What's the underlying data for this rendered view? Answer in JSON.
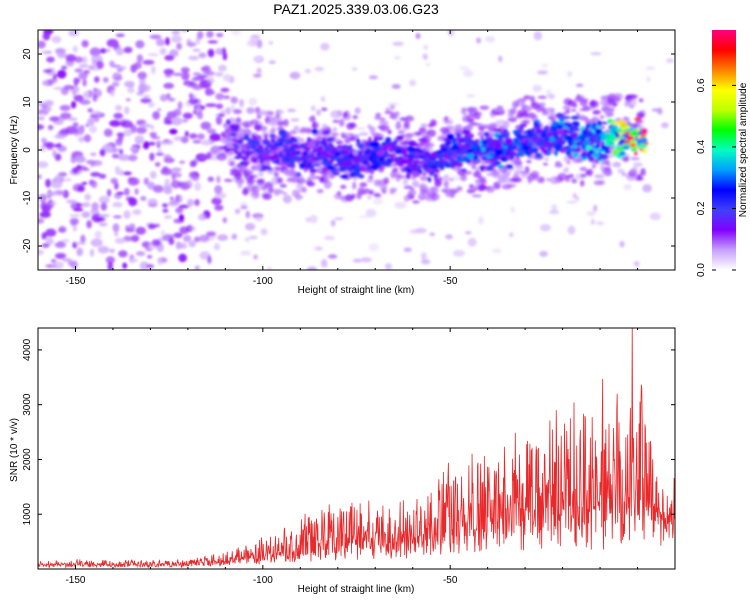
{
  "title": "PAZ1.2025.339.03.06.G23",
  "chart_data": [
    {
      "type": "heatmap",
      "panel": "top",
      "xlabel": "Height of straight line (km)",
      "ylabel": "Frequency (Hz)",
      "xlim": [
        -160,
        10
      ],
      "ylim": [
        -25,
        25
      ],
      "xticks": [
        -150,
        -100,
        -50
      ],
      "xtick_labels": [
        "-150",
        "-100",
        "-50"
      ],
      "yticks": [
        -20,
        -10,
        0,
        10,
        20
      ],
      "ytick_labels": [
        "-20",
        "-10",
        "0",
        "10",
        "20"
      ],
      "colorbar": {
        "label": "Normalized spectral amplitude",
        "range": [
          0.0,
          0.78
        ],
        "ticks": [
          0.0,
          0.2,
          0.4,
          0.6
        ],
        "tick_labels": [
          "0.0",
          "0.2",
          "0.4",
          "0.6"
        ],
        "colors": [
          "#ffffff",
          "#c8a0ff",
          "#8000ff",
          "#4040ff",
          "#0000ff",
          "#00a0ff",
          "#00ffc0",
          "#00ff00",
          "#c0ff00",
          "#ffff00",
          "#ff8000",
          "#ff0000",
          "#ff0080"
        ]
      },
      "signal_trace": [
        {
          "x": -110,
          "y": 3,
          "amp": 0.15
        },
        {
          "x": -105,
          "y": 0,
          "amp": 0.22
        },
        {
          "x": -100,
          "y": -1,
          "amp": 0.2
        },
        {
          "x": -95,
          "y": 0,
          "amp": 0.22
        },
        {
          "x": -90,
          "y": -1,
          "amp": 0.25
        },
        {
          "x": -85,
          "y": 0,
          "amp": 0.22
        },
        {
          "x": -80,
          "y": -1,
          "amp": 0.25
        },
        {
          "x": -75,
          "y": -2,
          "amp": 0.22
        },
        {
          "x": -70,
          "y": -1,
          "amp": 0.25
        },
        {
          "x": -65,
          "y": 0,
          "amp": 0.22
        },
        {
          "x": -60,
          "y": -2,
          "amp": 0.24
        },
        {
          "x": -55,
          "y": -3,
          "amp": 0.25
        },
        {
          "x": -50,
          "y": -1,
          "amp": 0.28
        },
        {
          "x": -45,
          "y": 0,
          "amp": 0.3
        },
        {
          "x": -40,
          "y": 0,
          "amp": 0.32
        },
        {
          "x": -35,
          "y": 0,
          "amp": 0.3
        },
        {
          "x": -30,
          "y": 2,
          "amp": 0.28
        },
        {
          "x": -25,
          "y": 2,
          "amp": 0.3
        },
        {
          "x": -20,
          "y": 3,
          "amp": 0.32
        },
        {
          "x": -15,
          "y": 2,
          "amp": 0.35
        },
        {
          "x": -10,
          "y": 2,
          "amp": 0.38
        },
        {
          "x": -5,
          "y": 3,
          "amp": 0.55
        },
        {
          "x": 0,
          "y": 2,
          "amp": 0.78
        }
      ]
    },
    {
      "type": "line",
      "panel": "bottom",
      "xlabel": "Height of straight line (km)",
      "ylabel": "SNR (10 * v/v)",
      "xlim": [
        -160,
        10
      ],
      "ylim": [
        0,
        4400
      ],
      "xticks": [
        -150,
        -100,
        -50
      ],
      "xtick_labels": [
        "-150",
        "-100",
        "-50"
      ],
      "yticks": [
        1000,
        2000,
        3000,
        4000
      ],
      "ytick_labels": [
        "1000",
        "2000",
        "3000",
        "4000"
      ],
      "line_color": "#e8282a",
      "envelope": {
        "x": [
          -160,
          -150,
          -140,
          -130,
          -120,
          -110,
          -105,
          -100,
          -95,
          -90,
          -85,
          -80,
          -75,
          -70,
          -65,
          -60,
          -55,
          -50,
          -45,
          -40,
          -35,
          -30,
          -25,
          -20,
          -15,
          -10,
          -5,
          0,
          5,
          10
        ],
        "base": [
          80,
          90,
          80,
          90,
          100,
          150,
          200,
          250,
          300,
          350,
          400,
          450,
          500,
          450,
          450,
          500,
          600,
          700,
          800,
          850,
          900,
          900,
          950,
          1000,
          1050,
          1100,
          1200,
          1300,
          1000,
          1100
        ],
        "spread": [
          100,
          110,
          110,
          100,
          120,
          200,
          300,
          400,
          500,
          700,
          900,
          1000,
          1100,
          900,
          950,
          1000,
          1200,
          1500,
          1700,
          1800,
          1900,
          2000,
          2100,
          2300,
          2500,
          2800,
          3200,
          4300,
          1400,
          1000
        ]
      }
    }
  ]
}
